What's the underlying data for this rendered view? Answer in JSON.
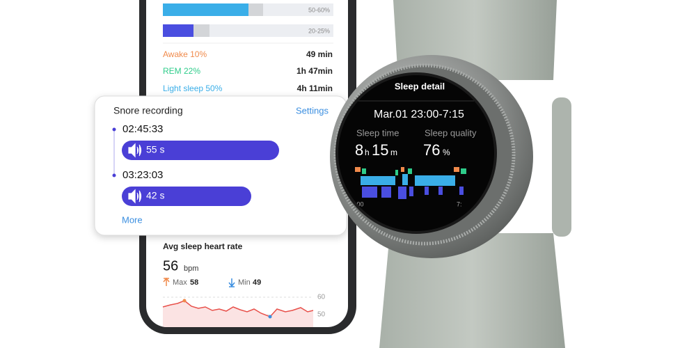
{
  "phone": {
    "stage_bars": [
      {
        "label": "50-60%"
      },
      {
        "label": "20-25%"
      }
    ],
    "stages": [
      {
        "name": "Awake 10%",
        "duration": "49 min"
      },
      {
        "name": "REM 22%",
        "duration": "1h 47min"
      },
      {
        "name": "Light sleep 50%",
        "duration": "4h 11min"
      }
    ],
    "heart_rate": {
      "title": "Avg sleep heart rate",
      "value": "56",
      "unit": "bpm",
      "max_label": "Max",
      "max": "58",
      "min_label": "Min",
      "min": "49",
      "axis": [
        "60",
        "50"
      ]
    }
  },
  "snore_card": {
    "title": "Snore recording",
    "settings": "Settings",
    "recordings": [
      {
        "time": "02:45:33",
        "duration": "55 s"
      },
      {
        "time": "03:23:03",
        "duration": "42 s"
      }
    ],
    "more": "More"
  },
  "watch": {
    "title": "Sleep detail",
    "date": "Mar.01 23:00-7:15",
    "sleep_time_label": "Sleep time",
    "hours": "8",
    "hours_unit": "h",
    "minutes": "15",
    "minutes_unit": "m",
    "sleep_quality_label": "Sleep quality",
    "quality": "76",
    "quality_unit": "%",
    "axis": [
      ":00",
      "7:"
    ]
  }
}
